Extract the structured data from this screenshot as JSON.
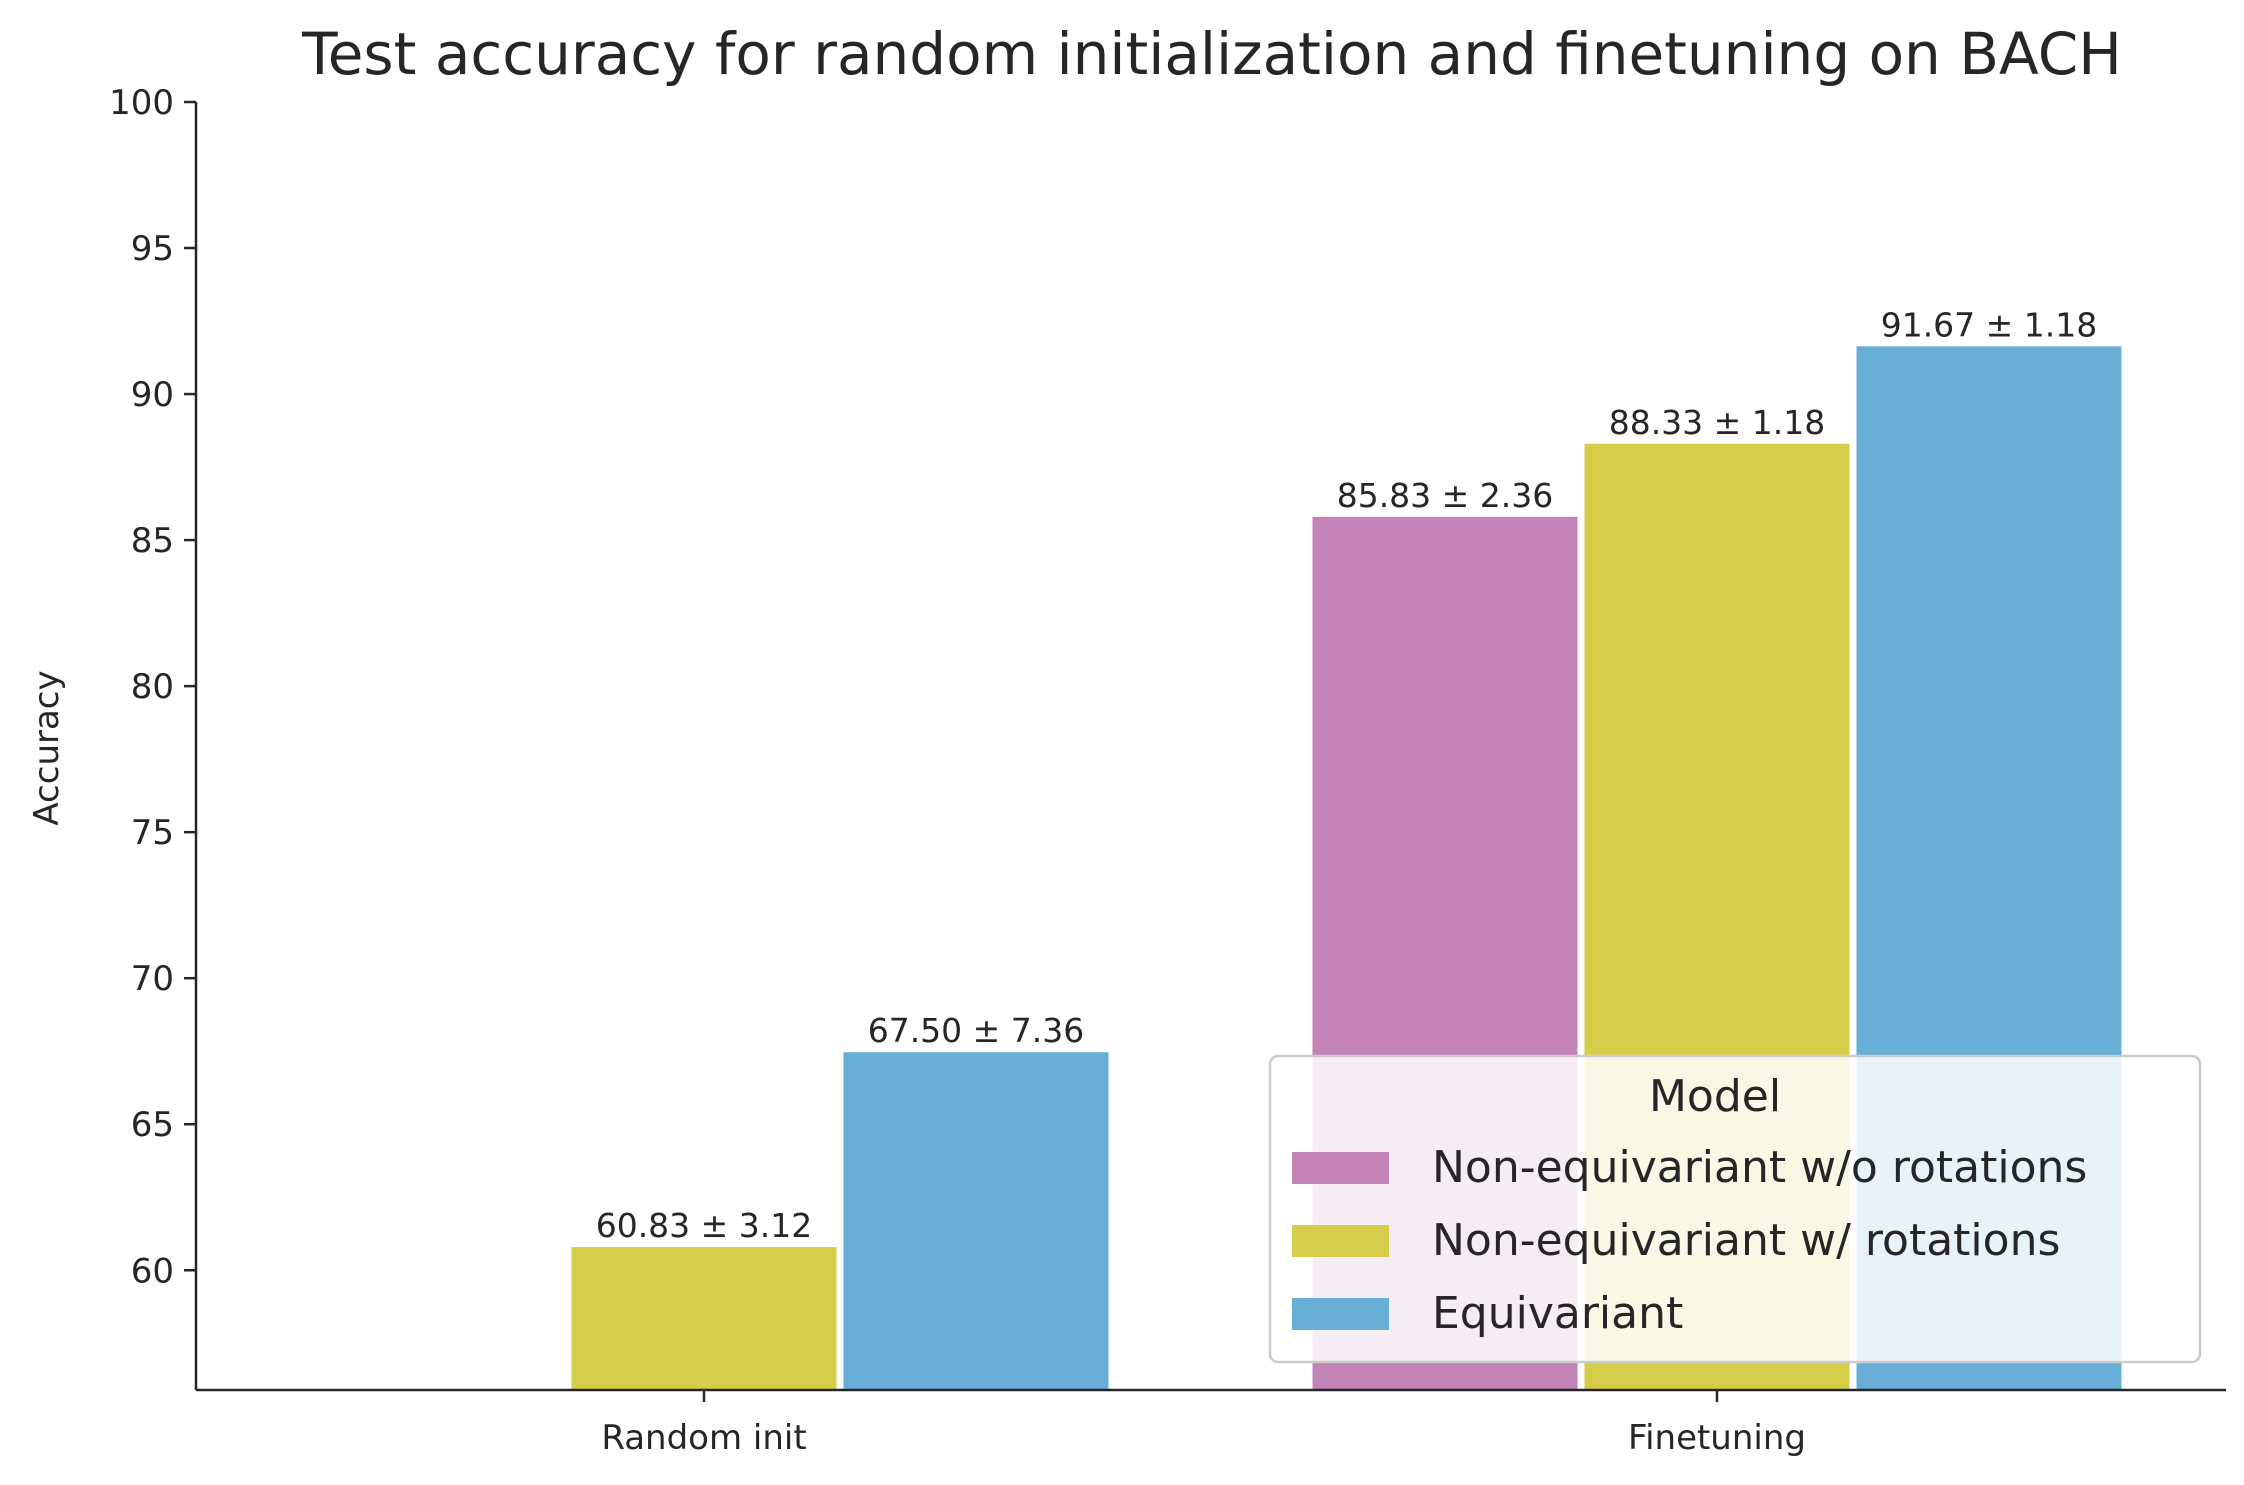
{
  "chart_data": {
    "type": "bar",
    "title": "Test accuracy for random initialization and finetuning on BACH",
    "xlabel": "",
    "ylabel": "Accuracy",
    "ylim": [
      55.9,
      100
    ],
    "yticks": [
      60,
      65,
      70,
      75,
      80,
      85,
      90,
      95,
      100
    ],
    "categories": [
      "Random init",
      "Finetuning"
    ],
    "series": [
      {
        "name": "Non-equivariant w/o rotations",
        "color": "#c383b6",
        "values": [
          null,
          85.83
        ],
        "labels": [
          "",
          "85.83 ± 2.36"
        ]
      },
      {
        "name": "Non-equivariant w/ rotations",
        "color": "#d6ce4a",
        "values": [
          60.83,
          88.33
        ],
        "labels": [
          "60.83 ± 3.12",
          "88.33 ± 1.18"
        ]
      },
      {
        "name": "Equivariant",
        "color": "#68afd7",
        "values": [
          67.5,
          91.67
        ],
        "labels": [
          "67.50 ± 7.36",
          "91.67 ± 1.18"
        ]
      }
    ],
    "legend": {
      "title": "Model",
      "placement": "lower-right"
    },
    "grid": false
  }
}
